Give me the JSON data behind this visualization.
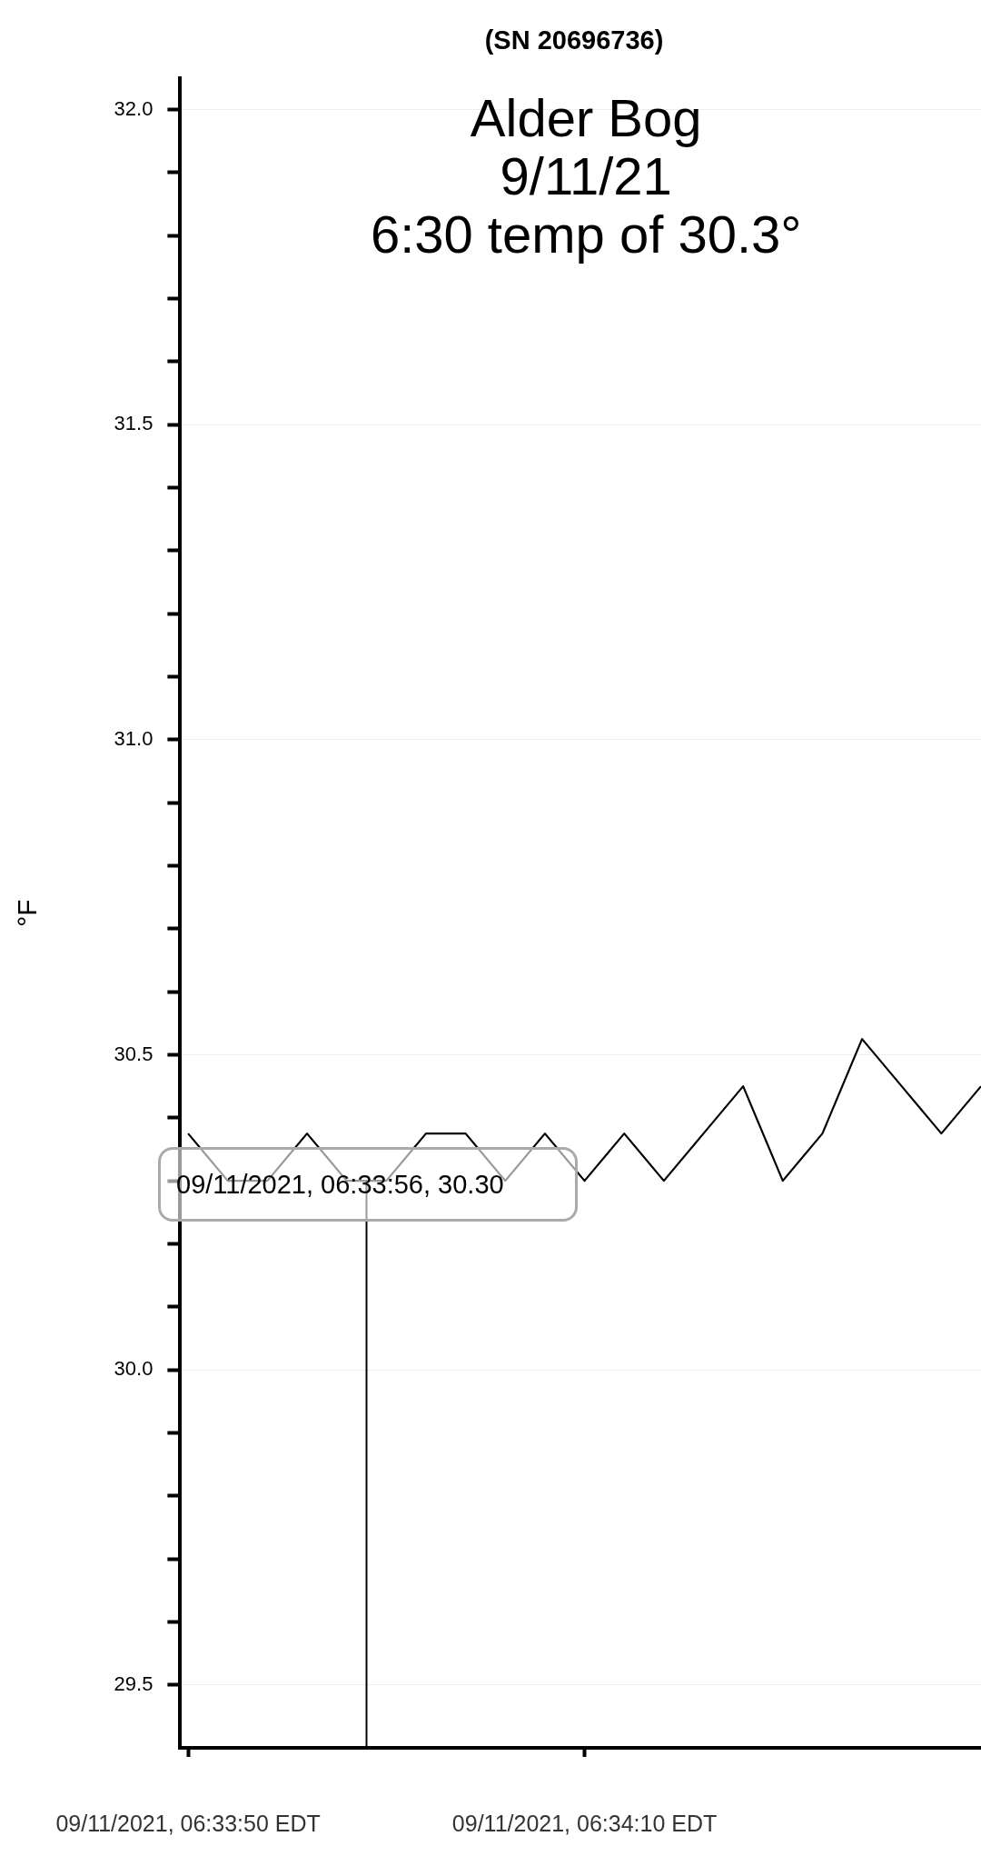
{
  "chart_data": {
    "type": "line",
    "title": "(SN 20696736)",
    "ylabel": "°F",
    "annotations": [
      "Alder Bog\n9/11/21\n6:30 temp of 30.3°",
      "09/11/2021, 06:33:56, 30.30"
    ],
    "x": [
      "2021-09-11T06:33:50",
      "2021-09-11T06:33:52",
      "2021-09-11T06:33:54",
      "2021-09-11T06:33:56",
      "2021-09-11T06:33:58",
      "2021-09-11T06:34:00",
      "2021-09-11T06:34:02",
      "2021-09-11T06:34:04",
      "2021-09-11T06:34:06",
      "2021-09-11T06:34:08",
      "2021-09-11T06:34:10",
      "2021-09-11T06:34:12",
      "2021-09-11T06:34:14",
      "2021-09-11T06:34:16",
      "2021-09-11T06:34:18",
      "2021-09-11T06:34:20",
      "2021-09-11T06:34:22",
      "2021-09-11T06:34:24",
      "2021-09-11T06:34:26",
      "2021-09-11T06:34:28",
      "2021-09-11T06:34:30"
    ],
    "series": [
      {
        "color": "#000000",
        "values": [
          30.375,
          30.3,
          30.3,
          30.375,
          30.3,
          30.3,
          30.375,
          30.375,
          30.3,
          30.375,
          30.3,
          30.375,
          30.3,
          30.375,
          30.45,
          30.3,
          30.375,
          30.525,
          30.45,
          30.375,
          30.45
        ]
      }
    ],
    "xlim": [
      "2021-09-11T06:33:49.6",
      "2021-09-11T06:34:30"
    ],
    "xticks": [
      {
        "value": "2021-09-11T06:33:50",
        "label": "09/11/2021, 06:33:50 EDT"
      },
      {
        "value": "2021-09-11T06:34:10",
        "label": "09/11/2021, 06:34:10 EDT"
      }
    ],
    "ylim": [
      29.4,
      32.05
    ],
    "yticks": [
      {
        "value": 29.5,
        "label": "29.5"
      },
      {
        "value": 29.6,
        "label": null
      },
      {
        "value": 29.7,
        "label": null
      },
      {
        "value": 29.8,
        "label": null
      },
      {
        "value": 29.9,
        "label": null
      },
      {
        "value": 30.0,
        "label": "30.0"
      },
      {
        "value": 30.1,
        "label": null
      },
      {
        "value": 30.2,
        "label": null
      },
      {
        "value": 30.3,
        "label": null
      },
      {
        "value": 30.4,
        "label": null
      },
      {
        "value": 30.5,
        "label": "30.5"
      },
      {
        "value": 30.6,
        "label": null
      },
      {
        "value": 30.7,
        "label": null
      },
      {
        "value": 30.8,
        "label": null
      },
      {
        "value": 30.9,
        "label": null
      },
      {
        "value": 31.0,
        "label": "31.0"
      },
      {
        "value": 31.1,
        "label": null
      },
      {
        "value": 31.2,
        "label": null
      },
      {
        "value": 31.3,
        "label": null
      },
      {
        "value": 31.4,
        "label": null
      },
      {
        "value": 31.5,
        "label": "31.5"
      },
      {
        "value": 31.6,
        "label": null
      },
      {
        "value": 31.7,
        "label": null
      },
      {
        "value": 31.8,
        "label": null
      },
      {
        "value": 31.9,
        "label": null
      },
      {
        "value": 32.0,
        "label": "32.0"
      }
    ],
    "grid": "y",
    "ref_lines": [
      {
        "axis": "x",
        "value": "2021-09-11T06:33:59",
        "color": "#000000"
      }
    ]
  }
}
